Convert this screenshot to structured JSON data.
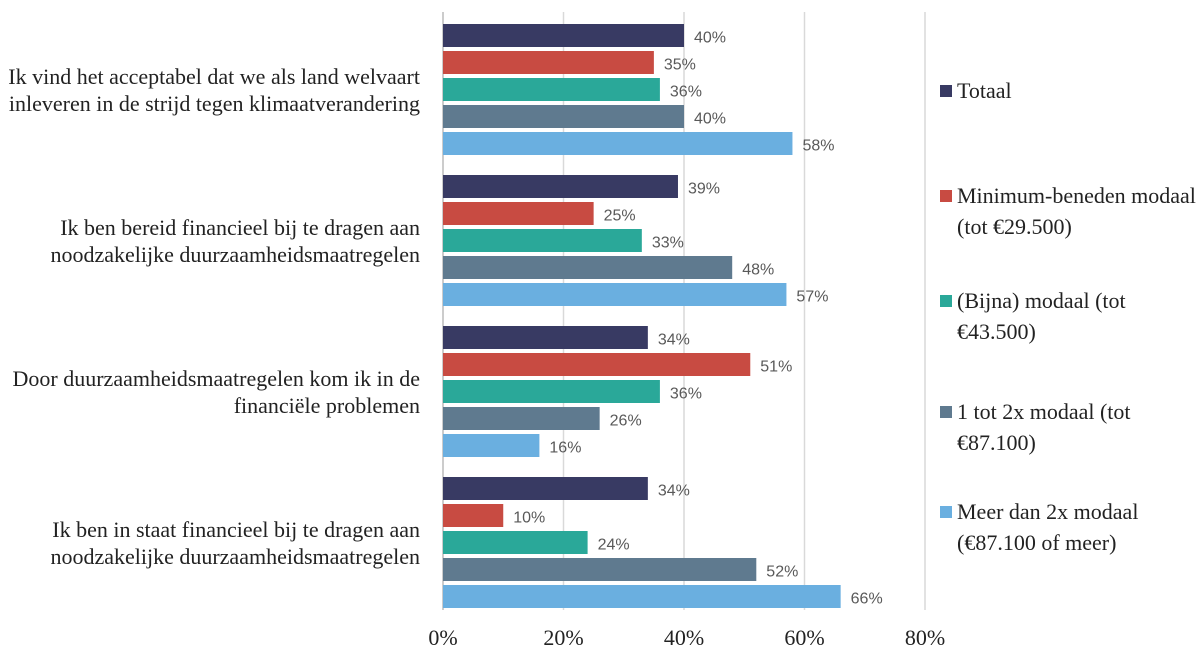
{
  "chart_data": {
    "type": "bar",
    "orientation": "horizontal",
    "categories": [
      "Ik vind het acceptabel dat we als land welvaart inleveren in de strijd tegen klimaatverandering",
      "Ik ben bereid financieel bij te dragen aan noodzakelijke duurzaamheidsmaatregelen",
      "Door duurzaamheidsmaatregelen kom ik in de financiële problemen",
      "Ik ben in staat financieel bij te dragen aan noodzakelijke duurzaamheidsmaatregelen"
    ],
    "series": [
      {
        "name": "Totaal",
        "color": "#383a63",
        "values": [
          40,
          39,
          34,
          34
        ],
        "value_labels": [
          "40%",
          "39%",
          "34%",
          "34%"
        ]
      },
      {
        "name": "Minimum-beneden modaal (tot €29.500)",
        "color": "#c84b42",
        "values": [
          35,
          25,
          51,
          10
        ],
        "value_labels": [
          "35%",
          "25%",
          "51%",
          "10%"
        ]
      },
      {
        "name": "(Bijna) modaal (tot €43.500)",
        "color": "#2aa899",
        "values": [
          36,
          33,
          36,
          24
        ],
        "value_labels": [
          "36%",
          "33%",
          "36%",
          "24%"
        ]
      },
      {
        "name": "1 tot 2x modaal (tot €87.100)",
        "color": "#5f7a8f",
        "values": [
          40,
          48,
          26,
          52
        ],
        "value_labels": [
          "40%",
          "48%",
          "26%",
          "52%"
        ]
      },
      {
        "name": "Meer dan 2x modaal (€87.100 of meer)",
        "color": "#6aafe0",
        "values": [
          58,
          57,
          16,
          66
        ],
        "value_labels": [
          "58%",
          "57%",
          "16%",
          "66%"
        ]
      }
    ],
    "xlim": [
      0,
      80
    ],
    "xticks": [
      {
        "value": 0,
        "label": "0%"
      },
      {
        "value": 20,
        "label": "20%"
      },
      {
        "value": 40,
        "label": "40%"
      },
      {
        "value": 60,
        "label": "60%"
      },
      {
        "value": 80,
        "label": "80%"
      }
    ],
    "grid": true,
    "legend": "right"
  }
}
